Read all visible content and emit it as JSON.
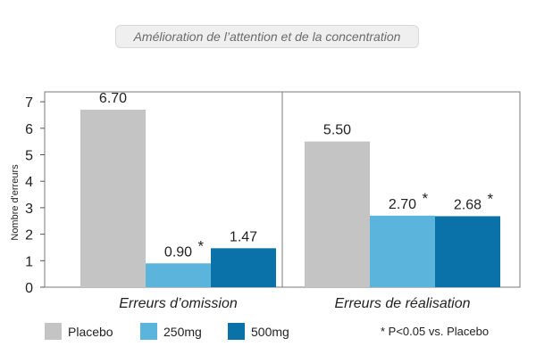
{
  "chart_data": {
    "type": "bar",
    "title": "Amélioration de l’attention et de la concentration",
    "ylabel": "Nombre d'erreurs",
    "xlabel": "",
    "ylim": [
      0,
      7.5
    ],
    "yticks": [
      0,
      1,
      2,
      3,
      4,
      5,
      6,
      7
    ],
    "categories": [
      "Erreurs d’omission",
      "Erreurs de réalisation"
    ],
    "series": [
      {
        "name": "Placebo",
        "values": [
          6.7,
          5.5
        ],
        "labels": [
          "6.70",
          "5.50"
        ],
        "significant": [
          false,
          false
        ],
        "color": "#c4c4c4"
      },
      {
        "name": "250mg",
        "values": [
          0.9,
          2.7
        ],
        "labels": [
          "0.90",
          "2.70"
        ],
        "significant": [
          true,
          true
        ],
        "color": "#5bb4dc"
      },
      {
        "name": "500mg",
        "values": [
          1.47,
          2.68
        ],
        "labels": [
          "1.47",
          "2.68"
        ],
        "significant": [
          false,
          true
        ],
        "color": "#0a72a8"
      }
    ],
    "significance_marker": "*",
    "note": "* P<0.05 vs. Placebo",
    "grid": false,
    "legend_position": "bottom-left"
  }
}
